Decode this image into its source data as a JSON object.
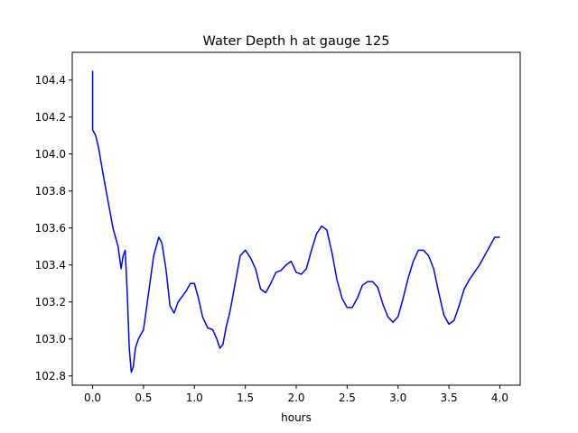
{
  "chart_data": {
    "type": "line",
    "title": "Water Depth h at gauge 125",
    "xlabel": "hours",
    "ylabel": "",
    "xlim": [
      -0.2,
      4.2
    ],
    "ylim": [
      102.75,
      104.55
    ],
    "grid": false,
    "xticks": [
      0.0,
      0.5,
      1.0,
      1.5,
      2.0,
      2.5,
      3.0,
      3.5,
      4.0
    ],
    "xtick_labels": [
      "0.0",
      "0.5",
      "1.0",
      "1.5",
      "2.0",
      "2.5",
      "3.0",
      "3.5",
      "4.0"
    ],
    "yticks": [
      102.8,
      103.0,
      103.2,
      103.4,
      103.6,
      103.8,
      104.0,
      104.2,
      104.4
    ],
    "ytick_labels": [
      "102.8",
      "103.0",
      "103.2",
      "103.4",
      "103.6",
      "103.8",
      "104.0",
      "104.2",
      "104.4"
    ],
    "series": [
      {
        "name": "h",
        "color": "#0000ff",
        "x": [
          0.0,
          0.0,
          0.0,
          0.03,
          0.06,
          0.1,
          0.15,
          0.2,
          0.25,
          0.28,
          0.3,
          0.32,
          0.34,
          0.36,
          0.38,
          0.4,
          0.42,
          0.45,
          0.5,
          0.55,
          0.6,
          0.65,
          0.68,
          0.72,
          0.76,
          0.8,
          0.84,
          0.88,
          0.92,
          0.96,
          1.0,
          1.04,
          1.08,
          1.13,
          1.18,
          1.22,
          1.25,
          1.28,
          1.31,
          1.35,
          1.4,
          1.45,
          1.5,
          1.55,
          1.6,
          1.65,
          1.7,
          1.75,
          1.8,
          1.85,
          1.9,
          1.95,
          2.0,
          2.05,
          2.1,
          2.15,
          2.2,
          2.25,
          2.3,
          2.35,
          2.4,
          2.45,
          2.5,
          2.55,
          2.6,
          2.65,
          2.7,
          2.75,
          2.8,
          2.85,
          2.9,
          2.95,
          3.0,
          3.05,
          3.1,
          3.15,
          3.2,
          3.25,
          3.3,
          3.35,
          3.4,
          3.45,
          3.5,
          3.55,
          3.6,
          3.65,
          3.7,
          3.75,
          3.8,
          3.85,
          3.9,
          3.95,
          4.0
        ],
        "y": [
          104.45,
          104.13,
          104.13,
          104.1,
          104.03,
          103.9,
          103.75,
          103.6,
          103.5,
          103.38,
          103.45,
          103.48,
          103.25,
          102.95,
          102.82,
          102.85,
          102.95,
          103.0,
          103.05,
          103.25,
          103.45,
          103.55,
          103.52,
          103.38,
          103.18,
          103.14,
          103.2,
          103.23,
          103.26,
          103.3,
          103.3,
          103.22,
          103.12,
          103.06,
          103.05,
          103.0,
          102.95,
          102.97,
          103.06,
          103.15,
          103.3,
          103.45,
          103.48,
          103.44,
          103.38,
          103.27,
          103.25,
          103.3,
          103.36,
          103.37,
          103.4,
          103.42,
          103.36,
          103.35,
          103.38,
          103.48,
          103.57,
          103.61,
          103.59,
          103.47,
          103.32,
          103.22,
          103.17,
          103.17,
          103.22,
          103.29,
          103.31,
          103.31,
          103.28,
          103.19,
          103.12,
          103.09,
          103.12,
          103.22,
          103.33,
          103.42,
          103.48,
          103.48,
          103.45,
          103.38,
          103.25,
          103.13,
          103.08,
          103.1,
          103.18,
          103.27,
          103.32,
          103.36,
          103.4,
          103.45,
          103.5,
          103.55,
          103.55
        ]
      }
    ]
  }
}
